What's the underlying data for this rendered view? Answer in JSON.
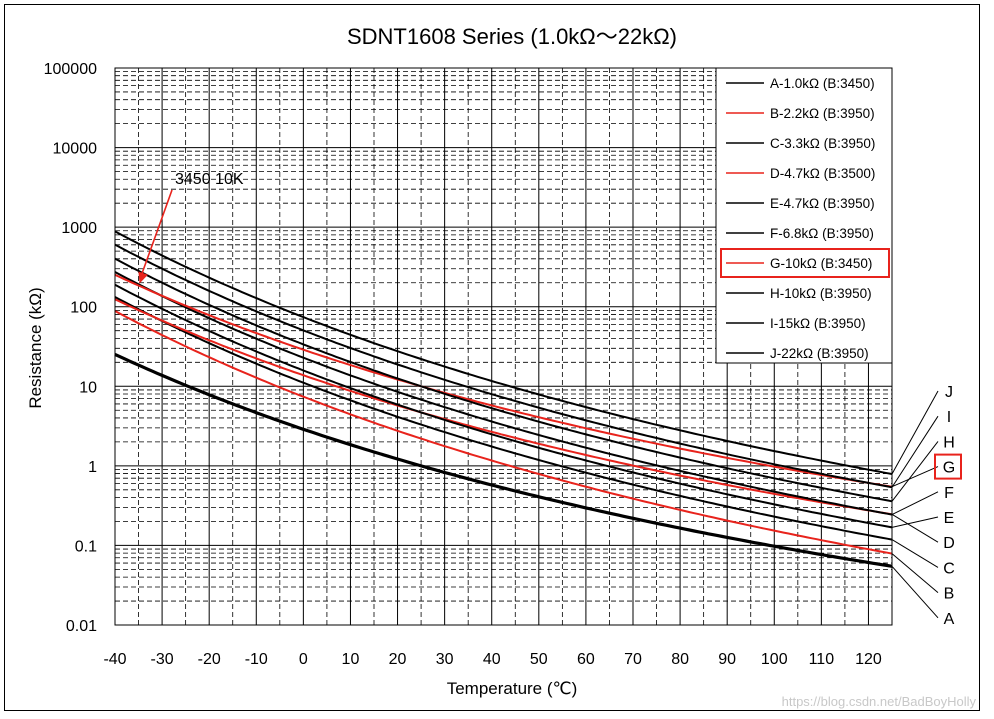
{
  "chart_data": {
    "type": "line",
    "title": "SDNT1608 Series (1.0kΩ～22kΩ)",
    "xlabel": "Temperature (℃)",
    "ylabel": "Resistance (kΩ)",
    "xlim": [
      -40,
      125
    ],
    "ylim": [
      0.01,
      100000
    ],
    "yscale": "log",
    "x_ticks": [
      "-40",
      "-30",
      "-20",
      "-10",
      "0",
      "10",
      "20",
      "30",
      "40",
      "50",
      "60",
      "70",
      "80",
      "90",
      "100",
      "110",
      "120"
    ],
    "y_ticks": [
      "100000",
      "10000",
      "1000",
      "100",
      "10",
      "1",
      "0.1",
      "0.01"
    ],
    "grid": true,
    "legend_position": "top-right",
    "series": [
      {
        "id": "A",
        "name": "A-1.0kΩ (B:3450)",
        "color": "#000000",
        "r25": 1.0,
        "beta": 3450,
        "highlight": false
      },
      {
        "id": "B",
        "name": "B-2.2kΩ (B:3950)",
        "color": "#e8231c",
        "r25": 2.2,
        "beta": 3950,
        "highlight": false
      },
      {
        "id": "C",
        "name": "C-3.3kΩ (B:3950)",
        "color": "#000000",
        "r25": 3.3,
        "beta": 3950,
        "highlight": false
      },
      {
        "id": "D",
        "name": "D-4.7kΩ (B:3500)",
        "color": "#e8231c",
        "r25": 4.7,
        "beta": 3500,
        "highlight": false
      },
      {
        "id": "E",
        "name": "E-4.7kΩ (B:3950)",
        "color": "#000000",
        "r25": 4.7,
        "beta": 3950,
        "highlight": false
      },
      {
        "id": "F",
        "name": "F-6.8kΩ (B:3950)",
        "color": "#000000",
        "r25": 6.8,
        "beta": 3950,
        "highlight": false
      },
      {
        "id": "G",
        "name": "G-10kΩ (B:3450)",
        "color": "#e8231c",
        "r25": 10,
        "beta": 3450,
        "highlight": true
      },
      {
        "id": "H",
        "name": "H-10kΩ (B:3950)",
        "color": "#000000",
        "r25": 10,
        "beta": 3950,
        "highlight": false
      },
      {
        "id": "I",
        "name": "I-15kΩ (B:3950)",
        "color": "#000000",
        "r25": 15,
        "beta": 3950,
        "highlight": false
      },
      {
        "id": "J",
        "name": "J-22kΩ (B:3950)",
        "color": "#000000",
        "r25": 22,
        "beta": 3950,
        "highlight": false
      }
    ],
    "end_labels": [
      "J",
      "I",
      "H",
      "G",
      "F",
      "E",
      "D",
      "C",
      "B",
      "A"
    ],
    "annotation": {
      "text": "3450 10K",
      "color": "#e8231c",
      "target_x": -35,
      "target_series": "G"
    }
  },
  "watermark": "https://blog.csdn.net/BadBoyHolly"
}
